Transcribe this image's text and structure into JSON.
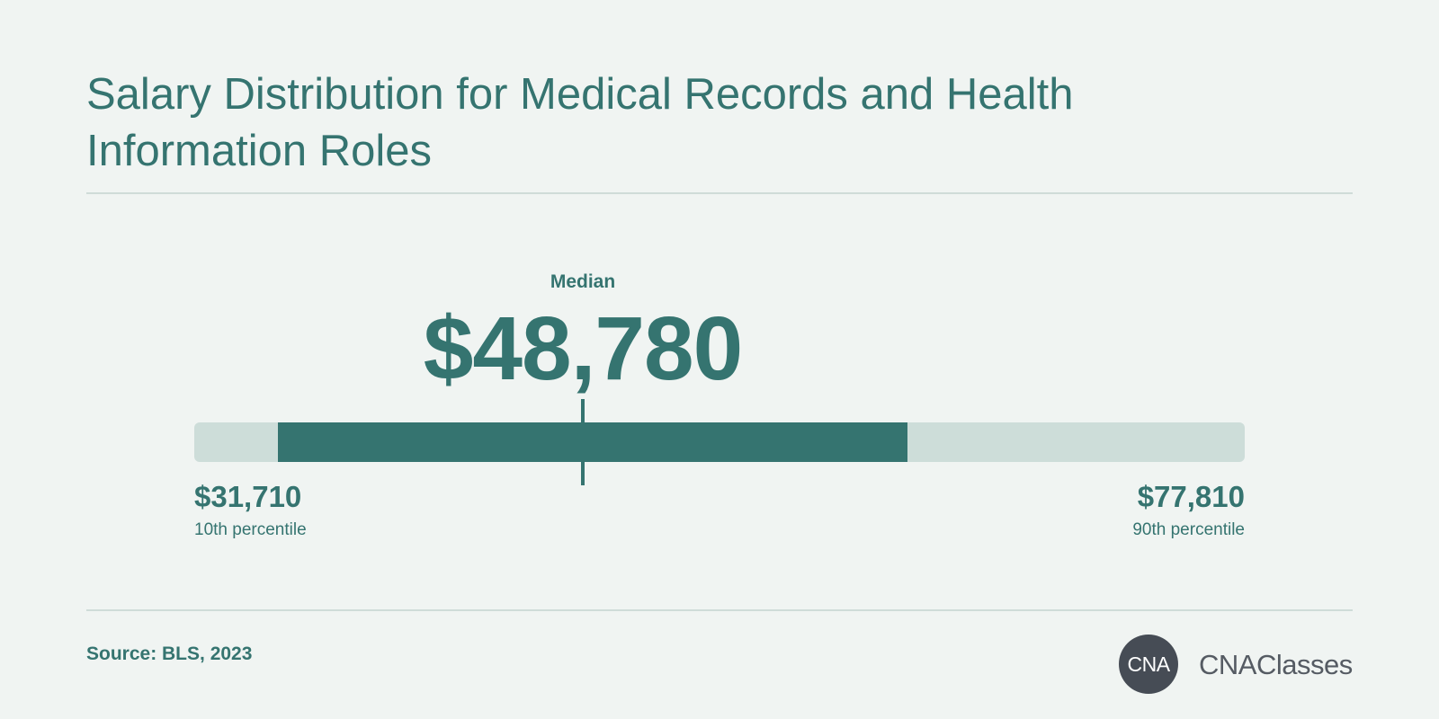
{
  "title": "Salary Distribution for Medical Records and Health Information Roles",
  "source": "Source: BLS, 2023",
  "logo": {
    "badge": "CNA",
    "wordmark": "CNAClasses"
  },
  "colors": {
    "accent": "#357470",
    "track": "#cdddd9",
    "background": "#f0f4f2",
    "logo": "#464c55"
  },
  "chart_data": {
    "type": "range",
    "title": "Salary Distribution for Medical Records and Health Information Roles",
    "axis_range": [
      31710,
      77810
    ],
    "median": {
      "label": "Median",
      "value": 48780,
      "display": "$48,780"
    },
    "p10": {
      "label": "10th percentile",
      "value": 31710,
      "display": "$31,710"
    },
    "p90": {
      "label": "90th percentile",
      "value": 77810,
      "display": "$77,810"
    },
    "highlight_range": [
      35390,
      63000
    ]
  }
}
